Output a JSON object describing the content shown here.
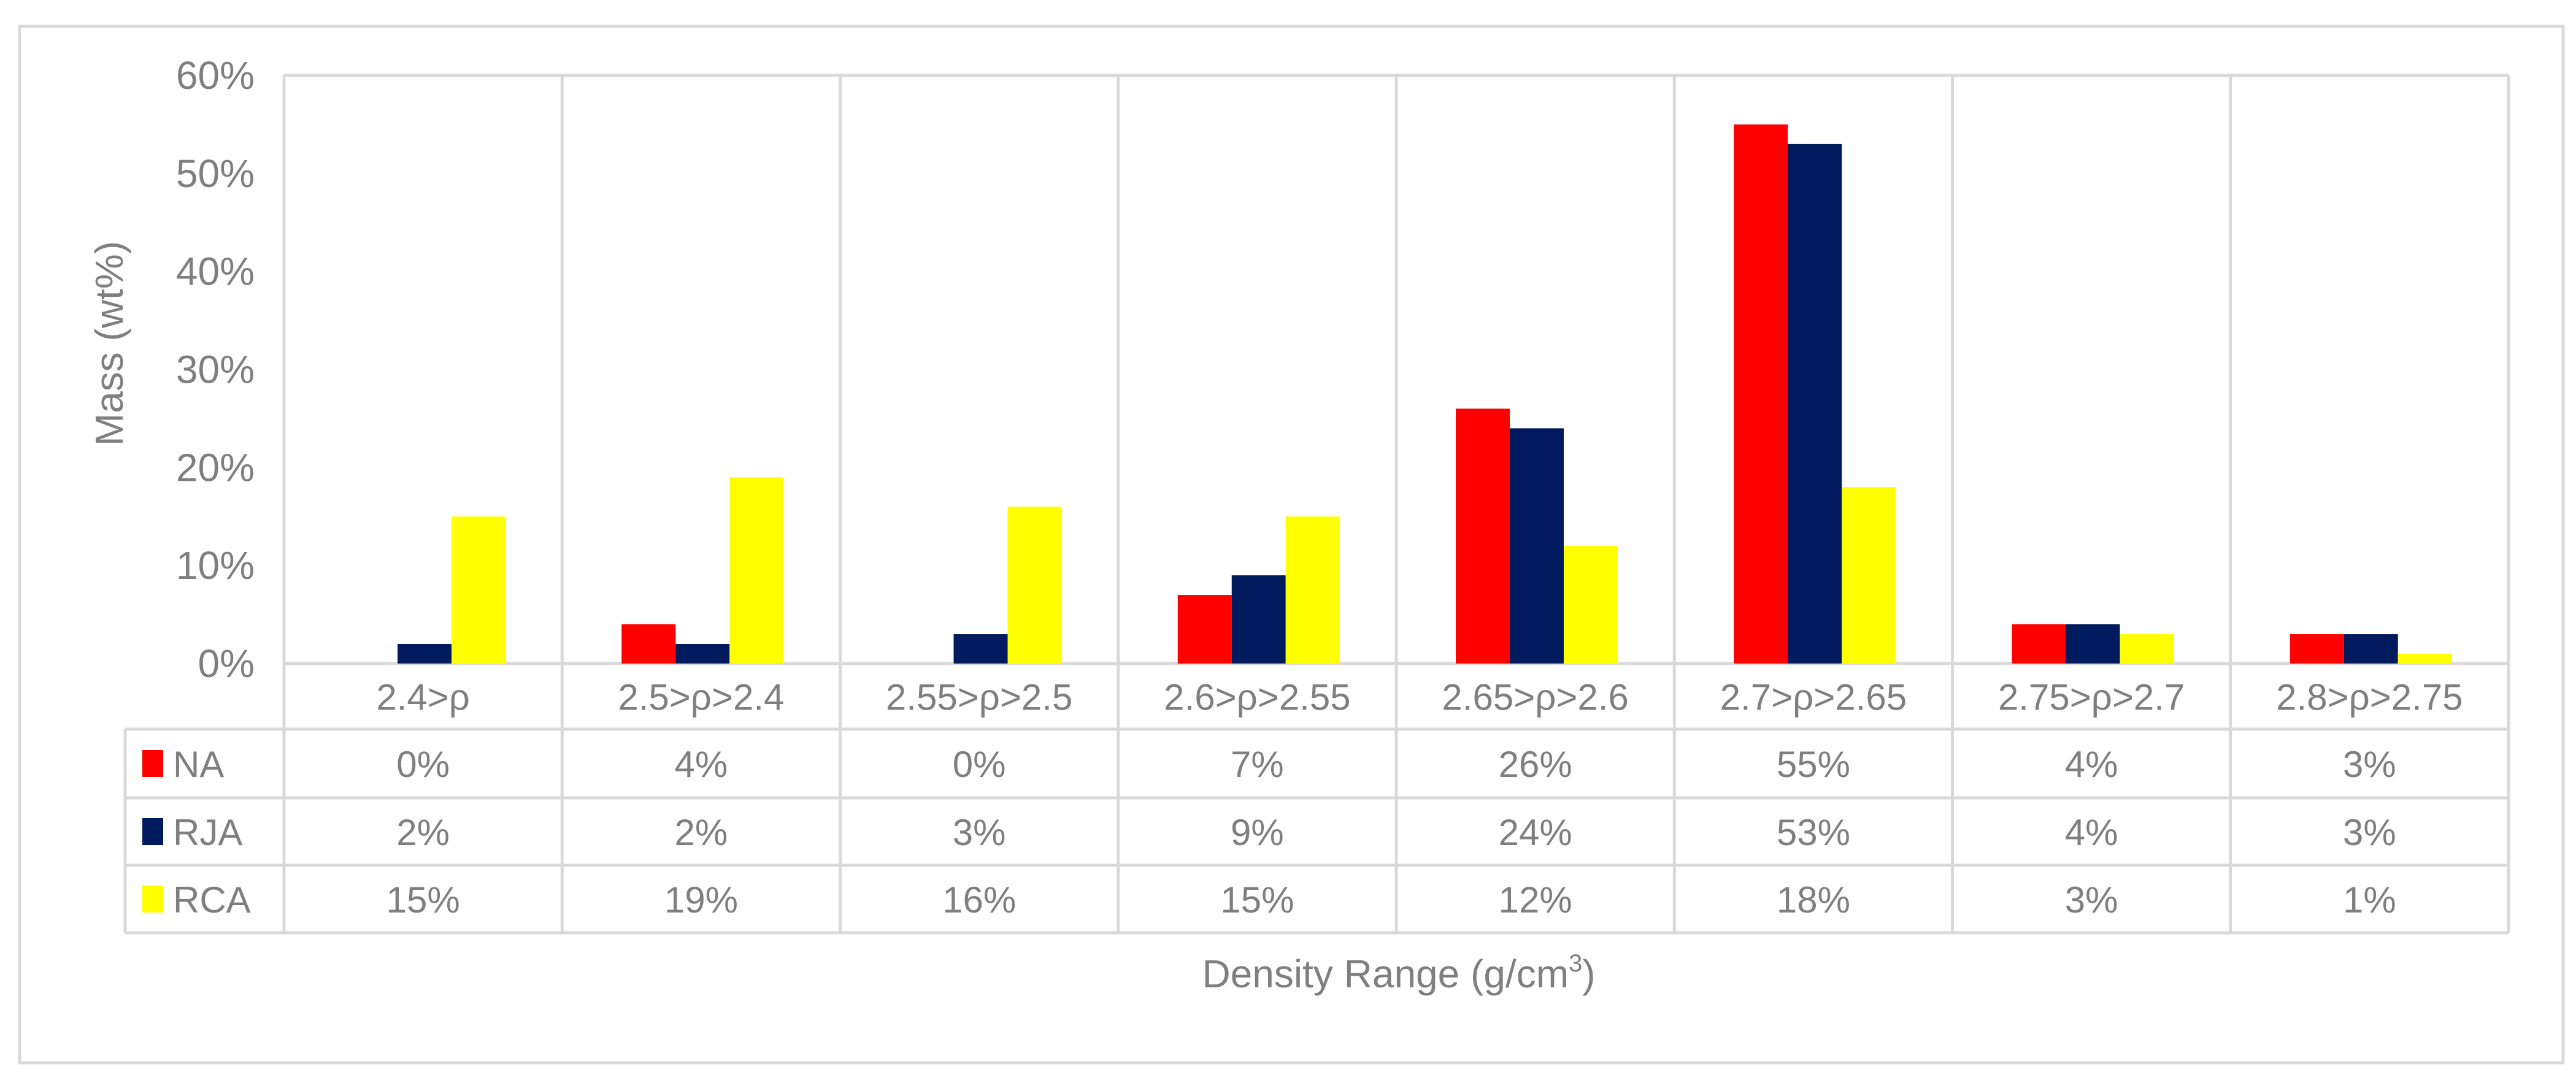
{
  "chart_data": {
    "type": "bar",
    "title": "",
    "xlabel": "Density Range (g/cm",
    "xlabel_superscript": "3",
    "xlabel_suffix": ")",
    "ylabel": "Mass (wt%)",
    "ylim": [
      0,
      60
    ],
    "yticks": [
      "0%",
      "10%",
      "20%",
      "30%",
      "40%",
      "50%",
      "60%"
    ],
    "grid": "vertical",
    "legend": "data-table",
    "categories": [
      "2.4>ρ",
      "2.5>ρ>2.4",
      "2.55>ρ>2.5",
      "2.6>ρ>2.55",
      "2.65>ρ>2.6",
      "2.7>ρ>2.65",
      "2.75>ρ>2.7",
      "2.8>ρ>2.75"
    ],
    "series": [
      {
        "name": "NA",
        "color": "#FF0000",
        "values": [
          0,
          4,
          0,
          7,
          26,
          55,
          4,
          3
        ],
        "labels": [
          "0%",
          "4%",
          "0%",
          "7%",
          "26%",
          "55%",
          "4%",
          "3%"
        ]
      },
      {
        "name": "RJA",
        "color": "#001A5E",
        "values": [
          2,
          2,
          3,
          9,
          24,
          53,
          4,
          3
        ],
        "labels": [
          "2%",
          "2%",
          "3%",
          "9%",
          "24%",
          "53%",
          "4%",
          "3%"
        ]
      },
      {
        "name": "RCA",
        "color": "#FFFF00",
        "values": [
          15,
          19,
          16,
          15,
          12,
          18,
          3,
          1
        ],
        "labels": [
          "15%",
          "19%",
          "16%",
          "15%",
          "12%",
          "18%",
          "3%",
          "1%"
        ]
      }
    ]
  }
}
